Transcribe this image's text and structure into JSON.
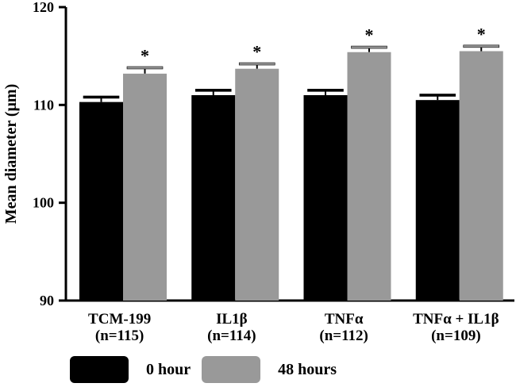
{
  "chart_data": {
    "type": "bar",
    "title": "",
    "xlabel": "",
    "ylabel": "Mean diameter (μm)",
    "ylim": [
      90,
      120
    ],
    "yticks": [
      "90",
      "100",
      "110",
      "120"
    ],
    "grid": false,
    "legend_position": "bottom",
    "categories": [
      "TCM-199\n(n=115)",
      "IL1β\n(n=114)",
      "TNFα\n(n=112)",
      "TNFα + IL1β\n(n=109)"
    ],
    "series": [
      {
        "name": "0 hour",
        "color": "#000000",
        "values": [
          110.3,
          111.0,
          111.0,
          110.5
        ],
        "errors": [
          0.5,
          0.5,
          0.5,
          0.5
        ]
      },
      {
        "name": "48 hours",
        "color": "#999999",
        "values": [
          113.2,
          113.7,
          115.4,
          115.5
        ],
        "errors": [
          0.6,
          0.5,
          0.5,
          0.5
        ]
      }
    ],
    "annotations": [
      "*",
      "*",
      "*",
      "*"
    ]
  }
}
